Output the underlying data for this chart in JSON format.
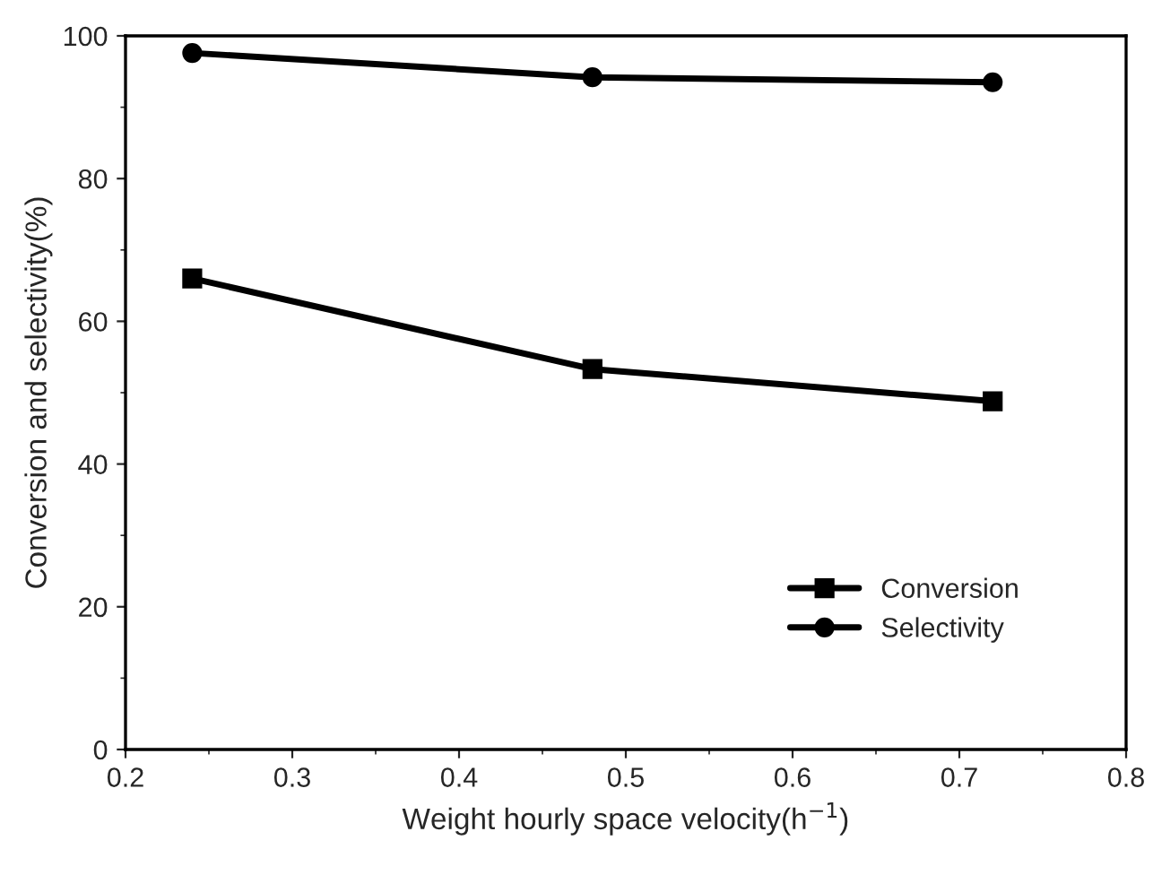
{
  "chart_data": {
    "type": "line",
    "xlabel": "Weight hourly space velocity(h$^{−1}$)",
    "ylabel": "Conversion and selectivity(%)",
    "x": [
      0.24,
      0.48,
      0.72
    ],
    "series": [
      {
        "name": "Conversion",
        "color": "#000000",
        "values": [
          66.0,
          53.3,
          48.8
        ],
        "marker": "square"
      },
      {
        "name": "Selectivity",
        "color": "#000000",
        "values": [
          97.6,
          94.2,
          93.5
        ],
        "marker": "circle"
      }
    ],
    "xlim": [
      0.2,
      0.8
    ],
    "xticks": [
      0.2,
      0.3,
      0.4,
      0.5,
      0.6,
      0.7,
      0.8
    ],
    "ylim": [
      0,
      100
    ],
    "yticks": [
      0,
      20,
      40,
      60,
      80,
      100
    ],
    "grid": false,
    "legend": "bottom right",
    "line_style": "solid"
  }
}
